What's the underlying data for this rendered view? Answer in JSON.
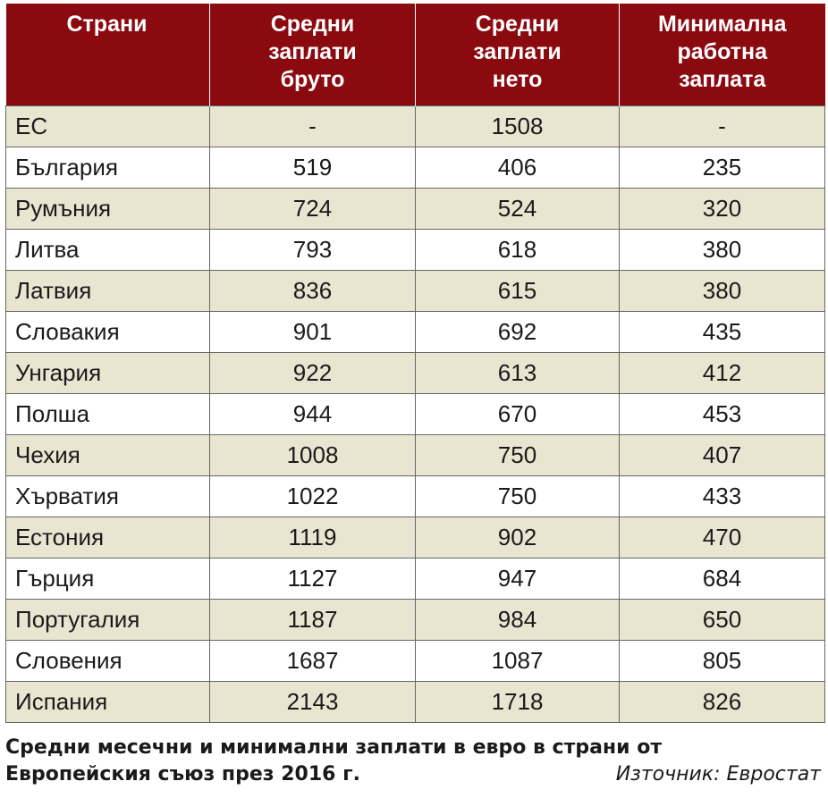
{
  "table": {
    "headers": [
      "Страни",
      "Средни\nзаплати\nбруто",
      "Средни\nзаплати\nнето",
      "Минимална\nработна\nзаплата"
    ],
    "rows": [
      [
        "ЕС",
        "-",
        "1508",
        "-"
      ],
      [
        "България",
        "519",
        "406",
        "235"
      ],
      [
        "Румъния",
        "724",
        "524",
        "320"
      ],
      [
        "Литва",
        "793",
        "618",
        "380"
      ],
      [
        "Латвия",
        "836",
        "615",
        "380"
      ],
      [
        "Словакия",
        "901",
        "692",
        "435"
      ],
      [
        "Унгария",
        "922",
        "613",
        "412"
      ],
      [
        "Полша",
        "944",
        "670",
        "453"
      ],
      [
        "Чехия",
        "1008",
        "750",
        "407"
      ],
      [
        "Хърватия",
        "1022",
        "750",
        "433"
      ],
      [
        "Естония",
        "1119",
        "902",
        "470"
      ],
      [
        "Гърция",
        "1127",
        "947",
        "684"
      ],
      [
        "Португалия",
        "1187",
        "984",
        "650"
      ],
      [
        "Словения",
        "1687",
        "1087",
        "805"
      ],
      [
        "Испания",
        "2143",
        "1718",
        "826"
      ]
    ]
  },
  "caption": "Средни месечни и минимални заплати в евро в страни от Европейския съюз през 2016 г.",
  "source": "Източник: Евростат",
  "colors": {
    "header_bg": "#8b0a10",
    "header_text": "#ffffff",
    "row_shaded": "#e8e6d1",
    "row_plain": "#ffffff"
  }
}
